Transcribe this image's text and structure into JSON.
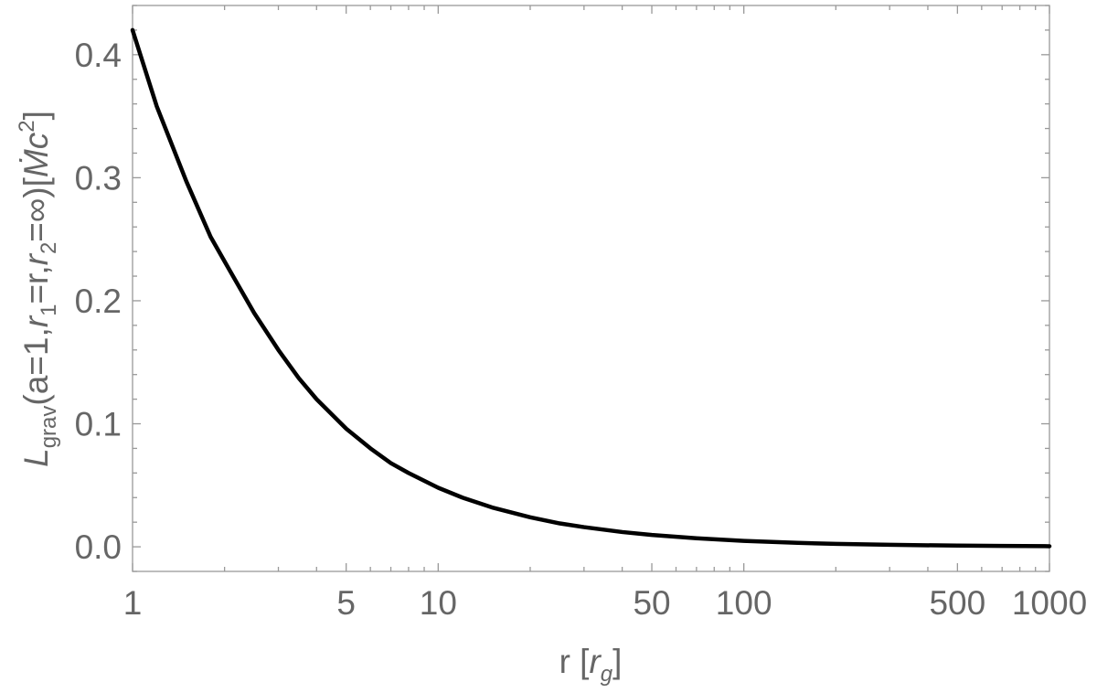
{
  "chart_data": {
    "type": "line",
    "xscale": "log",
    "xlim": [
      1,
      1000
    ],
    "ylim": [
      -0.02,
      0.44
    ],
    "grid": false,
    "xlabel": {
      "parts": [
        "r [",
        "r",
        "g",
        "]"
      ]
    },
    "ylabel": {
      "parts": [
        "L",
        "grav",
        "(a=1,",
        "r",
        "1",
        "=r,",
        "r",
        "2",
        "=∞)[",
        "Ṁ",
        "c",
        "2",
        "]"
      ]
    },
    "x_major_ticks": [
      1,
      5,
      10,
      50,
      100,
      500,
      1000
    ],
    "x_tick_labels": [
      "1",
      "5",
      "10",
      "50",
      "100",
      "500",
      "1000"
    ],
    "y_major_ticks": [
      0.0,
      0.1,
      0.2,
      0.3,
      0.4
    ],
    "y_tick_labels": [
      "0.0",
      "0.1",
      "0.2",
      "0.3",
      "0.4"
    ],
    "series": [
      {
        "color": "#000000",
        "points": [
          [
            1.0,
            0.42
          ],
          [
            1.2,
            0.358
          ],
          [
            1.5,
            0.297
          ],
          [
            1.8,
            0.252
          ],
          [
            2.0,
            0.232
          ],
          [
            2.5,
            0.19
          ],
          [
            3.0,
            0.16
          ],
          [
            3.5,
            0.137
          ],
          [
            4.0,
            0.12
          ],
          [
            5.0,
            0.096
          ],
          [
            6.0,
            0.08
          ],
          [
            7.0,
            0.068
          ],
          [
            8.0,
            0.06
          ],
          [
            10.0,
            0.048
          ],
          [
            12.0,
            0.04
          ],
          [
            15.0,
            0.032
          ],
          [
            20.0,
            0.024
          ],
          [
            25.0,
            0.019
          ],
          [
            30.0,
            0.016
          ],
          [
            40.0,
            0.012
          ],
          [
            50.0,
            0.0096
          ],
          [
            70.0,
            0.0069
          ],
          [
            100.0,
            0.0048
          ],
          [
            150.0,
            0.0032
          ],
          [
            200.0,
            0.0024
          ],
          [
            300.0,
            0.0016
          ],
          [
            500.0,
            0.00096
          ],
          [
            700.0,
            0.00069
          ],
          [
            1000.0,
            0.00048
          ]
        ]
      }
    ]
  }
}
